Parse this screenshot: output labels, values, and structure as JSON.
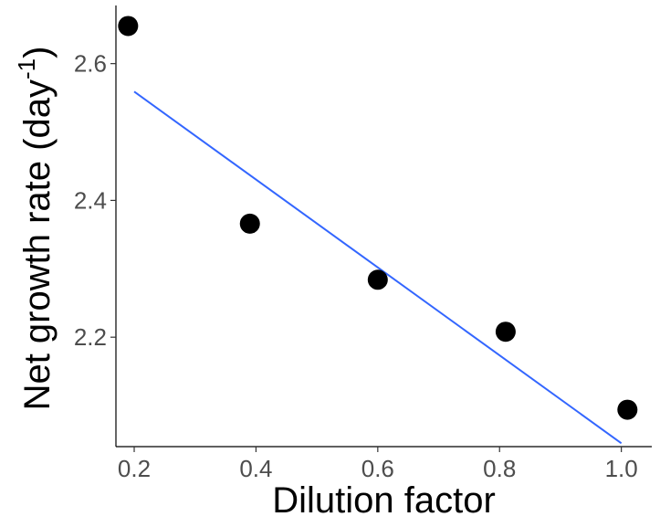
{
  "chart_data": {
    "type": "scatter",
    "xlabel": "Dilution factor",
    "ylabel": {
      "main": "Net growth rate (day",
      "superscript": "-1",
      "close": ")"
    },
    "xlim": [
      0.17,
      1.05
    ],
    "ylim": [
      2.04,
      2.685
    ],
    "x_ticks": [
      0.2,
      0.4,
      0.6,
      0.8,
      1.0
    ],
    "x_tick_labels": [
      "0.2",
      "0.4",
      "0.6",
      "0.8",
      "1.0"
    ],
    "y_ticks": [
      2.2,
      2.4,
      2.6
    ],
    "y_tick_labels": [
      "2.2",
      "2.4",
      "2.6"
    ],
    "points": [
      {
        "x": 0.19,
        "y": 2.655
      },
      {
        "x": 0.39,
        "y": 2.366
      },
      {
        "x": 0.6,
        "y": 2.284
      },
      {
        "x": 0.81,
        "y": 2.208
      },
      {
        "x": 1.01,
        "y": 2.094
      }
    ],
    "trend_line": {
      "x": [
        0.2,
        1.0
      ],
      "y": [
        2.559,
        2.045
      ]
    },
    "colors": {
      "points": "#000000",
      "trend_line": "#3366FF",
      "axis": "#000000",
      "tick_label": "#4d4d4d"
    },
    "grid": false
  }
}
